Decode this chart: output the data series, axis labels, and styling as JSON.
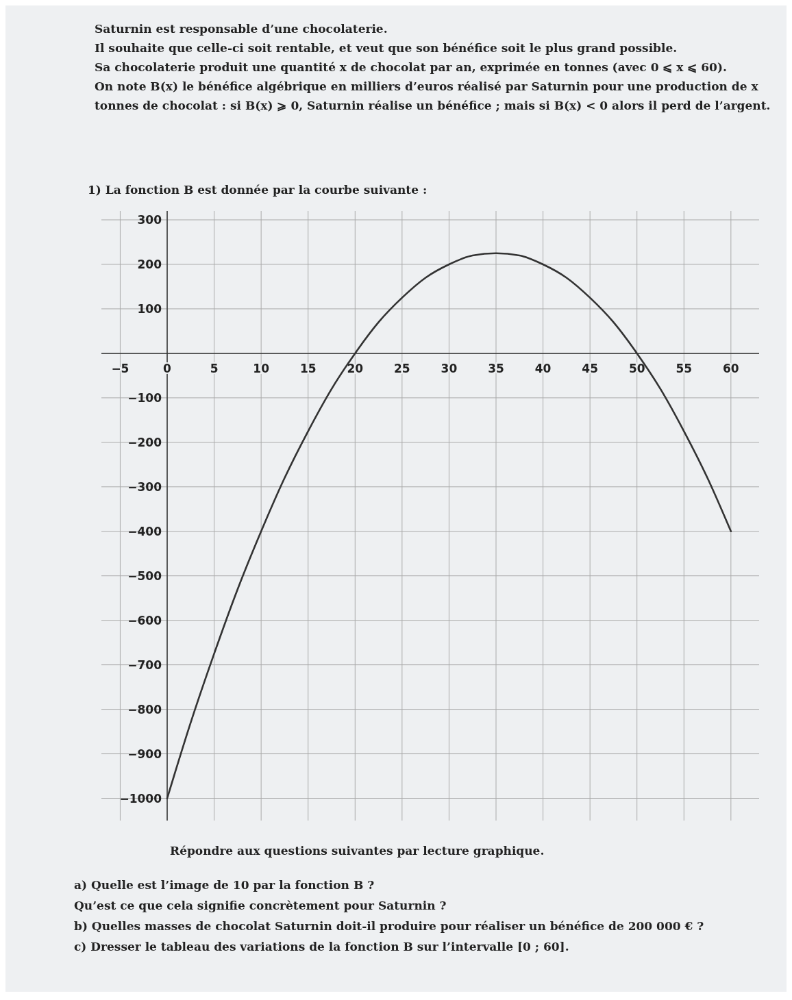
{
  "chart_data": {
    "type": "line",
    "title": "1) La fonction B est donnée par la courbe suivante :",
    "subtitle": "Saturnin est responsable d’une chocolaterie.\nIl souhaite que celle-ci soit rentable, et veut que son bénéfice soit le plus grand possible.\nSa chocolaterie produit une quantité x de chocolat par an, exprimée en tonnes (avec 0 ⩽ x ⩽ 60).\nOn note B(x) le bénéfice algébrique en milliers d’euros réalisé par Saturnin pour une production de x\ntonnes de chocolat : si B(x) ⩾ 0, Saturnin réalise un bénéfice ; mais si B(x) < 0 alors il perd de l’argent.",
    "x": [
      0,
      2.5,
      5,
      7.5,
      10,
      12.5,
      15,
      17.5,
      20,
      22.5,
      25,
      27.5,
      30,
      32.5,
      35,
      37.5,
      40,
      42.5,
      45,
      47.5,
      50,
      52.5,
      55,
      57.5,
      60
    ],
    "series": [
      {
        "color": "#333333",
        "values": [
          -1000,
          -830,
          -675,
          -530,
          -400,
          -280,
          -175,
          -80,
          0,
          70,
          125,
          170,
          200,
          220,
          225,
          220,
          200,
          170,
          125,
          70,
          0,
          -80,
          -175,
          -280,
          -400
        ]
      }
    ],
    "xlim": [
      -7,
      63
    ],
    "xticks": [
      -5,
      0,
      5,
      10,
      15,
      20,
      25,
      30,
      35,
      40,
      45,
      50,
      55,
      60
    ],
    "ylim": [
      -1050,
      320
    ],
    "yticks": [
      300,
      200,
      100,
      {
        "value": 0,
        "label": null
      },
      -100,
      -200,
      -300,
      -400,
      -500,
      -600,
      -700,
      -800,
      -900,
      -1000
    ],
    "grid": true,
    "marker": "none",
    "line_style": "solid",
    "annotations": [
      "Répondre aux questions suivantes par lecture graphique.",
      "a) Quelle est l’image de 10 par la fonction B ?",
      "Qu’est ce que cela signifie concrètement pour Saturnin ?",
      "b) Quelles masses de chocolat Saturnin doit-il produire pour réaliser un bénéfice de 200 000 € ?",
      "c) Dresser le tableau des variations de la fonction B sur l’intervalle [0 ; 60]."
    ]
  }
}
